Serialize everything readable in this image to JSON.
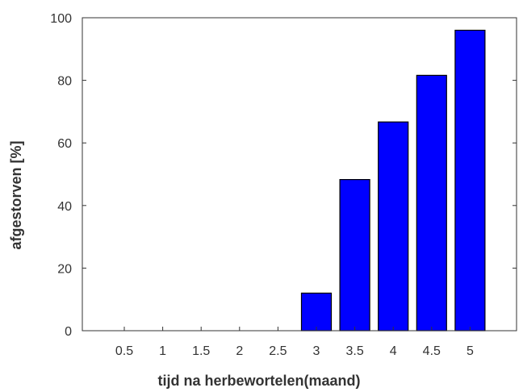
{
  "chart_data": {
    "type": "bar",
    "categories": [
      "0.5",
      "1",
      "1.5",
      "2",
      "2.5",
      "3",
      "3.5",
      "4",
      "4.5",
      "5"
    ],
    "values": [
      0,
      0,
      0,
      0,
      0,
      12,
      48.3,
      66.7,
      81.6,
      96
    ],
    "xlabel": "tijd na herbewortelen(maand)",
    "ylabel": "afgestorven [%]",
    "ylim": [
      0,
      100
    ],
    "yticks": [
      0,
      20,
      40,
      60,
      80,
      100
    ],
    "grid": false,
    "bar_color": "#0000ff",
    "edge_color": "#000000"
  }
}
